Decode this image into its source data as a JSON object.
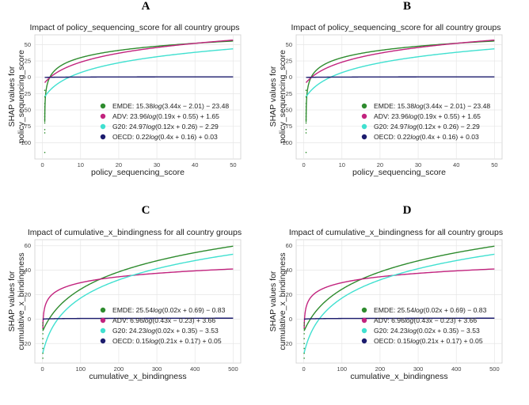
{
  "panels": [
    {
      "letter": "A",
      "title": "Impact of policy_sequencing_score for all country groups"
    },
    {
      "letter": "B",
      "title": "Impact of policy_sequencing_score for all country groups"
    },
    {
      "letter": "C",
      "title": "Impact of cumulative_x_bindingness for all country groups"
    },
    {
      "letter": "D",
      "title": "Impact of cumulative_x_bindingness for all country groups"
    }
  ],
  "colors": {
    "EMDE": "#2e8b2e",
    "ADV": "#c2237e",
    "G20": "#40e0d0",
    "OECD": "#1c1c6e"
  },
  "chart_data": [
    {
      "panel": "A",
      "type": "line",
      "title": "Impact of policy_sequencing_score for all country groups",
      "xlabel": "policy_sequencing_score",
      "ylabel": "SHAP values for policy_sequencing_score",
      "ylabel_lines": [
        "SHAP values for",
        "policy_sequencing_score"
      ],
      "xlim": [
        -2,
        52
      ],
      "ylim": [
        -125,
        65
      ],
      "xticks": [
        0,
        10,
        20,
        30,
        40,
        50
      ],
      "yticks": [
        -100,
        -75,
        -50,
        -25,
        0,
        25,
        50
      ],
      "x_range": [
        0.6,
        50
      ],
      "grid": true,
      "legend_position": "lower-right",
      "series": [
        {
          "name": "EMDE",
          "legend": "EMDE: 15.38log(3.44x − 2.01) − 23.48",
          "a": 15.38,
          "b": 3.44,
          "c": -2.01,
          "d": -23.48
        },
        {
          "name": "ADV",
          "legend": "ADV: 23.96log(0.19x + 0.55) + 1.65",
          "a": 23.96,
          "b": 0.19,
          "c": 0.55,
          "d": 1.65
        },
        {
          "name": "G20",
          "legend": "G20: 24.97log(0.12x + 0.26) − 2.29",
          "a": 24.97,
          "b": 0.12,
          "c": 0.26,
          "d": -2.29
        },
        {
          "name": "OECD",
          "legend": "OECD: 0.22log(0.4x + 0.16) + 0.03",
          "a": 0.22,
          "b": 0.4,
          "c": 0.16,
          "d": 0.03
        }
      ],
      "scatter_points": [
        [
          0.6,
          -115
        ],
        [
          0.6,
          -85
        ],
        [
          0.6,
          -80
        ],
        [
          0.6,
          -70
        ],
        [
          0.6,
          -65
        ],
        [
          0.6,
          -60
        ],
        [
          0.6,
          -55
        ],
        [
          0.6,
          -50
        ],
        [
          0.6,
          -45
        ],
        [
          0.6,
          -40
        ],
        [
          0.6,
          -30
        ],
        [
          0.6,
          -20
        ]
      ]
    },
    {
      "panel": "B",
      "type": "line",
      "title": "Impact of policy_sequencing_score for all country groups",
      "xlabel": "policy_sequencing_score",
      "ylabel": "SHAP values for policy_sequencing_score",
      "ylabel_lines": [
        "SHAP values for",
        "policy_sequencing_score"
      ],
      "xlim": [
        -2,
        52
      ],
      "ylim": [
        -125,
        65
      ],
      "xticks": [
        0,
        10,
        20,
        30,
        40,
        50
      ],
      "yticks": [
        -100,
        -75,
        -50,
        -25,
        0,
        25,
        50
      ],
      "x_range": [
        0.6,
        50
      ],
      "grid": true,
      "legend_position": "lower-right",
      "series": [
        {
          "name": "EMDE",
          "legend": "EMDE: 15.38log(3.44x − 2.01) − 23.48",
          "a": 15.38,
          "b": 3.44,
          "c": -2.01,
          "d": -23.48
        },
        {
          "name": "ADV",
          "legend": "ADV: 23.96log(0.19x + 0.55) + 1.65",
          "a": 23.96,
          "b": 0.19,
          "c": 0.55,
          "d": 1.65
        },
        {
          "name": "G20",
          "legend": "G20: 24.97log(0.12x + 0.26) − 2.29",
          "a": 24.97,
          "b": 0.12,
          "c": 0.26,
          "d": -2.29
        },
        {
          "name": "OECD",
          "legend": "OECD: 0.22log(0.4x + 0.16) + 0.03",
          "a": 0.22,
          "b": 0.4,
          "c": 0.16,
          "d": 0.03
        }
      ],
      "scatter_points": [
        [
          0.6,
          -115
        ],
        [
          0.6,
          -85
        ],
        [
          0.6,
          -80
        ],
        [
          0.6,
          -70
        ],
        [
          0.6,
          -65
        ],
        [
          0.6,
          -60
        ],
        [
          0.6,
          -55
        ],
        [
          0.6,
          -50
        ],
        [
          0.6,
          -45
        ],
        [
          0.6,
          -40
        ],
        [
          0.6,
          -30
        ],
        [
          0.6,
          -20
        ]
      ]
    },
    {
      "panel": "C",
      "type": "line",
      "title": "Impact of cumulative_x_bindingness for all country groups",
      "xlabel": "cumulative_x_bindingness",
      "ylabel": "SHAP values for cumulative_x_bindingness",
      "ylabel_lines": [
        "SHAP values for",
        "cumulative_x_bindingness"
      ],
      "xlim": [
        -20,
        520
      ],
      "ylim": [
        -36,
        65
      ],
      "xticks": [
        0,
        100,
        200,
        300,
        400,
        500
      ],
      "yticks": [
        -20,
        0,
        20,
        40,
        60
      ],
      "x_range": [
        1,
        500
      ],
      "grid": true,
      "legend_position": "lower-right",
      "series": [
        {
          "name": "EMDE",
          "legend": "EMDE: 25.54log(0.02x + 0.69) − 0.83",
          "a": 25.54,
          "b": 0.02,
          "c": 0.69,
          "d": -0.83
        },
        {
          "name": "ADV",
          "legend": "ADV: 6.96log(0.43x − 0.23) + 3.66",
          "a": 6.96,
          "b": 0.43,
          "c": -0.23,
          "d": 3.66
        },
        {
          "name": "G20",
          "legend": "G20: 24.23log(0.02x + 0.35) − 3.53",
          "a": 24.23,
          "b": 0.02,
          "c": 0.35,
          "d": -3.53
        },
        {
          "name": "OECD",
          "legend": "OECD: 0.15log(0.21x + 0.17) + 0.05",
          "a": 0.15,
          "b": 0.21,
          "c": 0.17,
          "d": 0.05
        }
      ],
      "scatter_points": [
        [
          1,
          -8
        ],
        [
          1,
          -5
        ],
        [
          1,
          -3
        ],
        [
          1,
          -12
        ],
        [
          1,
          -16
        ],
        [
          1,
          -20
        ],
        [
          1,
          -24
        ],
        [
          1,
          -28
        ],
        [
          1,
          -32
        ]
      ]
    },
    {
      "panel": "D",
      "type": "line",
      "title": "Impact of cumulative_x_bindingness for all country groups",
      "xlabel": "cumulative_x_bindingness",
      "ylabel": "SHAP values for cumulative_x_bindingness",
      "ylabel_lines": [
        "SHAP values for",
        "cumulative_x_bindingness"
      ],
      "xlim": [
        -20,
        520
      ],
      "ylim": [
        -36,
        65
      ],
      "xticks": [
        0,
        100,
        200,
        300,
        400,
        500
      ],
      "yticks": [
        -20,
        0,
        20,
        40,
        60
      ],
      "x_range": [
        1,
        500
      ],
      "grid": true,
      "legend_position": "lower-right",
      "series": [
        {
          "name": "EMDE",
          "legend": "EMDE: 25.54log(0.02x + 0.69) − 0.83",
          "a": 25.54,
          "b": 0.02,
          "c": 0.69,
          "d": -0.83
        },
        {
          "name": "ADV",
          "legend": "ADV: 6.96log(0.43x − 0.23) + 3.66",
          "a": 6.96,
          "b": 0.43,
          "c": -0.23,
          "d": 3.66
        },
        {
          "name": "G20",
          "legend": "G20: 24.23log(0.02x + 0.35) − 3.53",
          "a": 24.23,
          "b": 0.02,
          "c": 0.35,
          "d": -3.53
        },
        {
          "name": "OECD",
          "legend": "OECD: 0.15log(0.21x + 0.17) + 0.05",
          "a": 0.15,
          "b": 0.21,
          "c": 0.17,
          "d": 0.05
        }
      ],
      "scatter_points": [
        [
          1,
          -8
        ],
        [
          1,
          -5
        ],
        [
          1,
          -3
        ],
        [
          1,
          -12
        ],
        [
          1,
          -16
        ],
        [
          1,
          -20
        ],
        [
          1,
          -24
        ],
        [
          1,
          -28
        ],
        [
          1,
          -32
        ]
      ]
    }
  ]
}
